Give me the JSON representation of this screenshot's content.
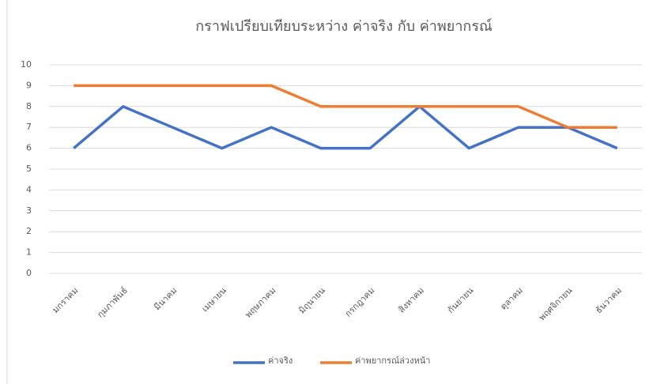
{
  "chart_data": {
    "type": "line",
    "title": "กราฟเปรียบเทียบระหว่าง ค่าจริง กับ ค่าพยากรณ์",
    "categories": [
      "มกราคม",
      "กุมภาพันธ์",
      "มีนาคม",
      "เมษายน",
      "พฤษภาคม",
      "มิถุนายน",
      "กรกฎาคม",
      "สิงหาคม",
      "กันยายน",
      "ตุลาคม",
      "พฤศจิกายน",
      "ธันวาคม"
    ],
    "series": [
      {
        "name": "ค่าจริง",
        "color": "#4472c4",
        "values": [
          6,
          8,
          7,
          6,
          7,
          6,
          6,
          8,
          6,
          7,
          7,
          6
        ]
      },
      {
        "name": "ค่าพยากรณ์ล่วงหน้า",
        "color": "#ed7d31",
        "values": [
          9,
          9,
          9,
          9,
          9,
          8,
          8,
          8,
          8,
          8,
          7,
          7
        ]
      }
    ],
    "ylim": [
      0,
      10
    ],
    "yticks": [
      0,
      1,
      2,
      3,
      4,
      5,
      6,
      7,
      8,
      9,
      10
    ],
    "grid": true,
    "legend": "bottom"
  }
}
